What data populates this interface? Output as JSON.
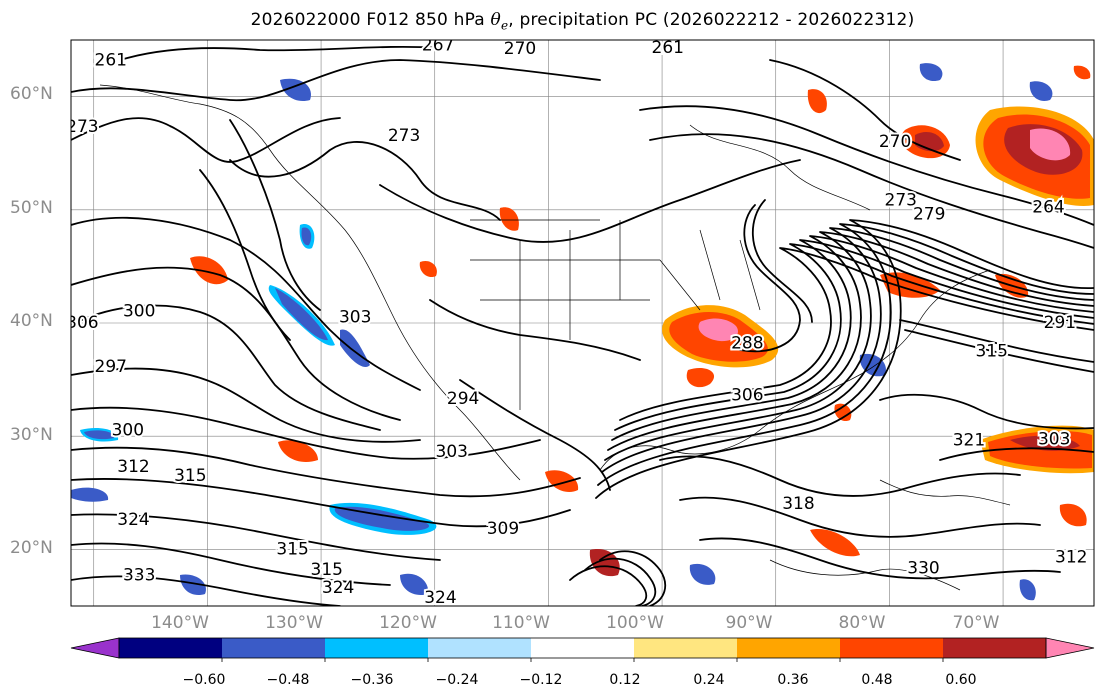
{
  "title": {
    "prefix": "2026022000 F012 850 hPa ",
    "theta_symbol": "θ",
    "theta_sub": "e",
    "suffix": ", precipitation PC (2026022212 - 2026022312)"
  },
  "map_extent": {
    "lon_min": -152,
    "lon_max": -62,
    "lat_min": 15,
    "lat_max": 65
  },
  "lat_labels": [
    "60°N",
    "50°N",
    "40°N",
    "30°N",
    "20°N"
  ],
  "lon_labels": [
    "140°W",
    "130°W",
    "120°W",
    "110°W",
    "100°W",
    "90°W",
    "80°W",
    "70°W"
  ],
  "contour_labels": [
    {
      "text": "261",
      "lon": -148.5,
      "lat": 63.2
    },
    {
      "text": "267",
      "lon": -119.7,
      "lat": 64.5
    },
    {
      "text": "270",
      "lon": -112.5,
      "lat": 64.2
    },
    {
      "text": "261",
      "lon": -99.5,
      "lat": 64.3
    },
    {
      "text": "273",
      "lon": -151.0,
      "lat": 57.3
    },
    {
      "text": "273",
      "lon": -122.7,
      "lat": 56.5
    },
    {
      "text": "270",
      "lon": -79.5,
      "lat": 56.0
    },
    {
      "text": "273",
      "lon": -79.0,
      "lat": 50.8
    },
    {
      "text": "279",
      "lon": -76.5,
      "lat": 49.6
    },
    {
      "text": "264",
      "lon": -66.0,
      "lat": 50.2
    },
    {
      "text": "306",
      "lon": -151.0,
      "lat": 40.0
    },
    {
      "text": "300",
      "lon": -146.0,
      "lat": 41.0
    },
    {
      "text": "303",
      "lon": -127.0,
      "lat": 40.5
    },
    {
      "text": "288",
      "lon": -92.5,
      "lat": 38.2
    },
    {
      "text": "291",
      "lon": -65.0,
      "lat": 40.0
    },
    {
      "text": "315",
      "lon": -71.0,
      "lat": 37.5
    },
    {
      "text": "297",
      "lon": -148.5,
      "lat": 36.1
    },
    {
      "text": "294",
      "lon": -117.5,
      "lat": 33.3
    },
    {
      "text": "306",
      "lon": -92.5,
      "lat": 33.6
    },
    {
      "text": "300",
      "lon": -147.0,
      "lat": 30.5
    },
    {
      "text": "303",
      "lon": -118.5,
      "lat": 28.6
    },
    {
      "text": "321",
      "lon": -73.0,
      "lat": 29.6
    },
    {
      "text": "303",
      "lon": -65.5,
      "lat": 29.7
    },
    {
      "text": "312",
      "lon": -146.5,
      "lat": 27.3
    },
    {
      "text": "315",
      "lon": -141.5,
      "lat": 26.5
    },
    {
      "text": "318",
      "lon": -88.0,
      "lat": 24.0
    },
    {
      "text": "309",
      "lon": -114.0,
      "lat": 21.8
    },
    {
      "text": "324",
      "lon": -146.5,
      "lat": 22.6
    },
    {
      "text": "315",
      "lon": -132.5,
      "lat": 20.0
    },
    {
      "text": "315",
      "lon": -129.5,
      "lat": 18.2
    },
    {
      "text": "333",
      "lon": -146.0,
      "lat": 17.7
    },
    {
      "text": "324",
      "lon": -128.5,
      "lat": 16.6
    },
    {
      "text": "324",
      "lon": -119.5,
      "lat": 15.7
    },
    {
      "text": "330",
      "lon": -77.0,
      "lat": 18.3
    },
    {
      "text": "312",
      "lon": -64.0,
      "lat": 19.3
    }
  ],
  "colorbar": {
    "ticks": [
      "−0.60",
      "−0.48",
      "−0.36",
      "−0.24",
      "−0.12",
      "0.12",
      "0.24",
      "0.36",
      "0.48",
      "0.60"
    ],
    "colors": [
      "#9932cc",
      "#000080",
      "#3a5bc7",
      "#00bfff",
      "#b0e2ff",
      "#ffffff",
      "#ffe680",
      "#ffa500",
      "#ff4500",
      "#b22222",
      "#ff85b3"
    ]
  },
  "colors": {
    "contour": "#000000",
    "graticule": "#808080",
    "positive_core": "#ff4500",
    "positive_edge": "#ffa500",
    "negative_core": "#3a5bc7",
    "negative_edge": "#00bfff"
  }
}
